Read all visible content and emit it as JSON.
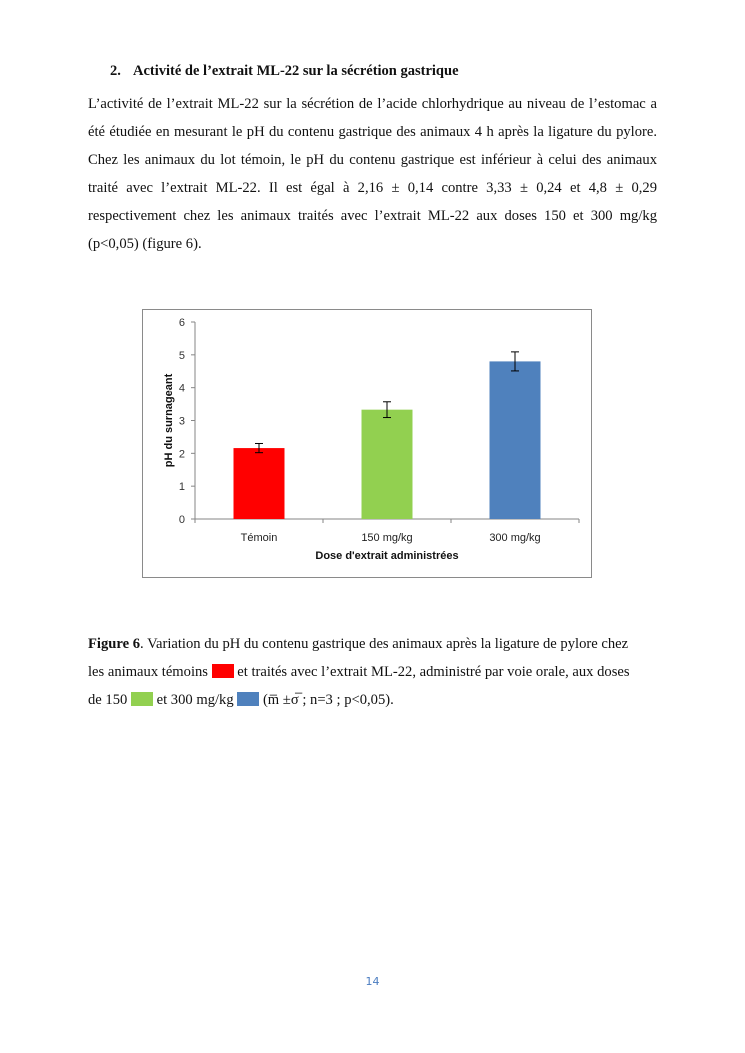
{
  "section": {
    "number": "2.",
    "title": "Activité de l’extrait ML-22 sur la sécrétion gastrique"
  },
  "paragraph": "L’activité de l’extrait ML-22 sur la sécrétion de l’acide chlorhydrique au niveau de l’estomac a été étudiée en mesurant le pH du contenu gastrique des animaux 4 h après la ligature du pylore. Chez les animaux du lot témoin, le pH du contenu gastrique est inférieur à celui des animaux traité avec l’extrait ML-22. Il est égal à 2,16 ± 0,14 contre 3,33 ± 0,24 et 4,8 ± 0,29 respectivement  chez les animaux traités avec l’extrait ML-22 aux doses 150 et 300 mg/kg (p<0,05) (figure 6).",
  "chart_data": {
    "type": "bar",
    "categories": [
      "Témoin",
      "150 mg/kg",
      "300 mg/kg"
    ],
    "values": [
      2.16,
      3.33,
      4.8
    ],
    "errors": [
      0.14,
      0.24,
      0.29
    ],
    "colors": [
      "#ff0000",
      "#92d050",
      "#4f81bd"
    ],
    "xlabel": "Dose d'extrait administrées",
    "ylabel": "pH  du surnageant",
    "ylim": [
      0,
      6
    ],
    "yticks": [
      "0",
      "1",
      "2",
      "3",
      "4",
      "5",
      "6"
    ],
    "grid": false,
    "legend": "none"
  },
  "caption": {
    "label": "Figure 6",
    "text1": ". Variation du  pH du contenu gastrique des animaux après la ligature de pylore chez",
    "text2a": "les animaux  témoins ",
    "text2b": " et traités avec l’extrait ML-22, administré par voie orale, aux doses",
    "text3a": "de 150 ",
    "text3b": " et 300 mg/kg ",
    "text3c": " (m̅ ±σ̅ ; n=3 ; p<0,05).",
    "swatch_colors": [
      "#ff0000",
      "#92d050",
      "#4f81bd"
    ]
  },
  "page_number": "14"
}
